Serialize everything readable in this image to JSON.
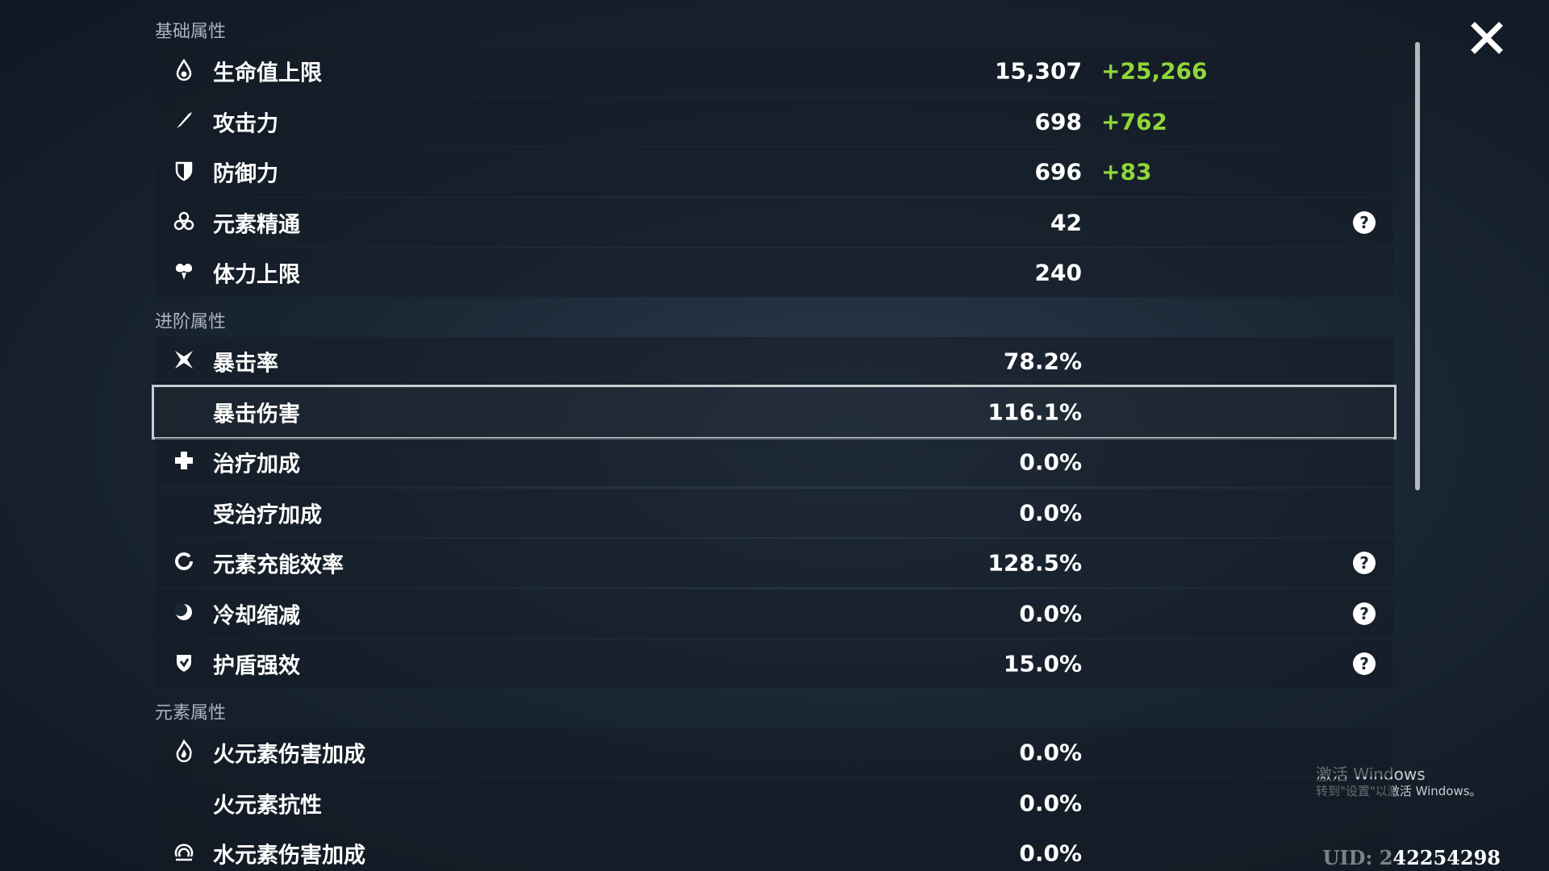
{
  "sections": [
    {
      "title": "基础属性",
      "rows": [
        {
          "label": "生命值上限",
          "value": "15,307",
          "bonus": "+25,266"
        },
        {
          "label": "攻击力",
          "value": "698",
          "bonus": "+762"
        },
        {
          "label": "防御力",
          "value": "696",
          "bonus": "+83"
        },
        {
          "label": "元素精通",
          "value": "42",
          "help": true
        },
        {
          "label": "体力上限",
          "value": "240"
        }
      ]
    },
    {
      "title": "进阶属性",
      "rows": [
        {
          "label": "暴击率",
          "value": "78.2%"
        },
        {
          "label": "暴击伤害",
          "value": "116.1%",
          "selected": true
        },
        {
          "label": "治疗加成",
          "value": "0.0%"
        },
        {
          "label": "受治疗加成",
          "value": "0.0%"
        },
        {
          "label": "元素充能效率",
          "value": "128.5%",
          "help": true
        },
        {
          "label": "冷却缩减",
          "value": "0.0%",
          "help": true
        },
        {
          "label": "护盾强效",
          "value": "15.0%",
          "help": true
        }
      ]
    },
    {
      "title": "元素属性",
      "rows": [
        {
          "label": "火元素伤害加成",
          "value": "0.0%"
        },
        {
          "label": "火元素抗性",
          "value": "0.0%"
        },
        {
          "label": "水元素伤害加成",
          "value": "0.0%"
        }
      ]
    }
  ],
  "watermark": {
    "title": "激活 Windows",
    "subtitle": "转到\"设置\"以激活 Windows。"
  },
  "uid": "UID: 242254298"
}
